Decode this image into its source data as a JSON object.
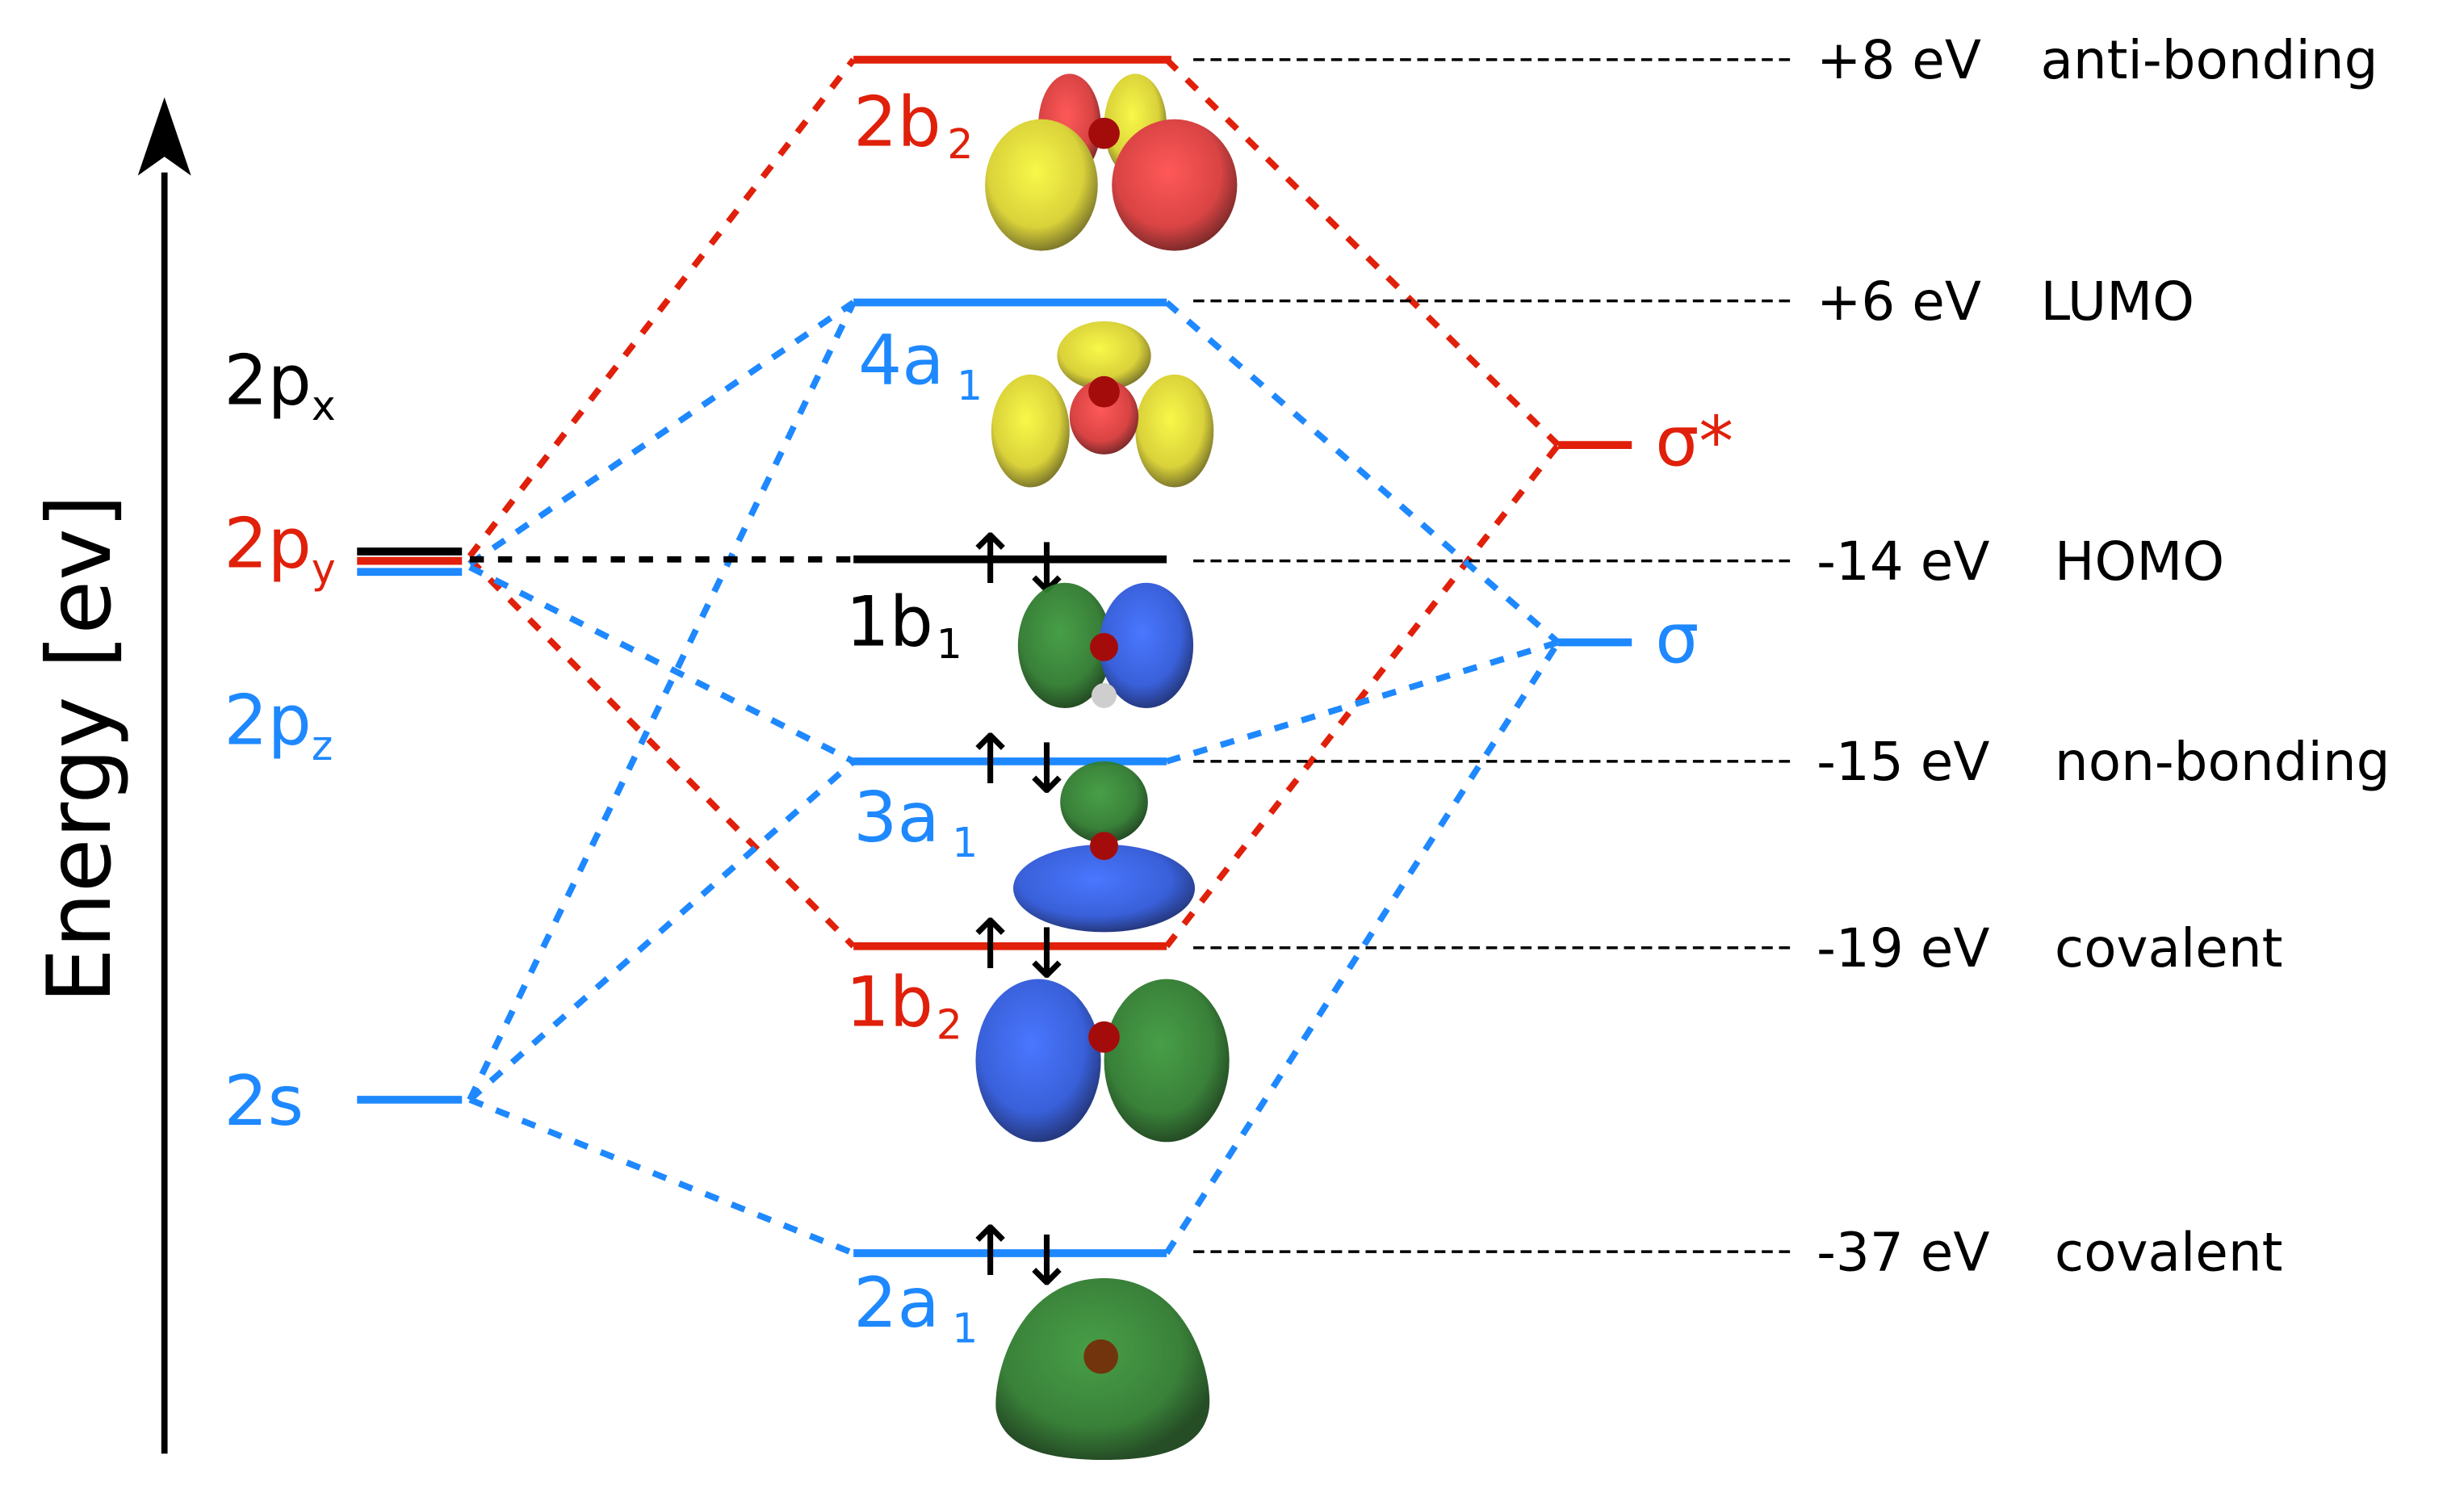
{
  "axis": {
    "label": "Energy [ev]"
  },
  "colors": {
    "red": "#e0200a",
    "blue": "#1e88ff",
    "black": "#000000"
  },
  "atomic_orbitals": [
    {
      "base": "2p",
      "sub": "x",
      "color": "black"
    },
    {
      "base": "2p",
      "sub": "y",
      "color": "red"
    },
    {
      "base": "2p",
      "sub": "z",
      "color": "blue"
    },
    {
      "base": "2s",
      "sub": "",
      "color": "blue"
    }
  ],
  "molecular_orbitals": [
    {
      "base": "2b",
      "sub": "2",
      "color": "red",
      "energy": "+8 eV",
      "description": "anti-bonding",
      "occupied": false
    },
    {
      "base": "4a",
      "sub": "1",
      "color": "blue",
      "energy": "+6 eV",
      "description": "LUMO",
      "occupied": false
    },
    {
      "base": "1b",
      "sub": "1",
      "color": "black",
      "energy": "-14 eV",
      "description": "HOMO",
      "occupied": true
    },
    {
      "base": "3a",
      "sub": "1",
      "color": "blue",
      "energy": "-15 eV",
      "description": "non-bonding",
      "occupied": true
    },
    {
      "base": "1b",
      "sub": "2",
      "color": "red",
      "energy": "-19 eV",
      "description": "covalent",
      "occupied": true
    },
    {
      "base": "2a",
      "sub": "1",
      "color": "blue",
      "energy": "-37 eV",
      "description": "covalent",
      "occupied": true
    }
  ],
  "hydrogen_orbitals": [
    {
      "label": "σ*",
      "color": "red"
    },
    {
      "label": "σ",
      "color": "blue"
    }
  ],
  "spin": {
    "up": "↑",
    "down": "↓"
  }
}
